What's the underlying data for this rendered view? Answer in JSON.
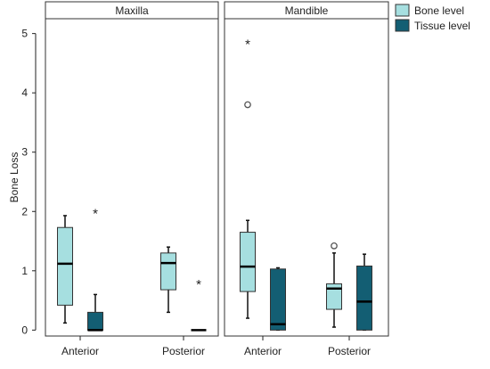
{
  "chart_data": {
    "type": "boxplot",
    "ylabel": "Bone Loss",
    "ylim": [
      -0.1,
      5.25
    ],
    "yticks": [
      0,
      1,
      2,
      3,
      4,
      5
    ],
    "categories": [
      "Anterior",
      "Posterior"
    ],
    "legend": {
      "position": "top-right",
      "entries": [
        {
          "name": "Bone level",
          "color": "#a6dfe0"
        },
        {
          "name": "Tissue level",
          "color": "#135e73"
        }
      ]
    },
    "panels": [
      {
        "title": "Maxilla",
        "groups": [
          {
            "category": "Anterior",
            "boxes": [
              {
                "series": "Bone level",
                "min": 0.12,
                "q1": 0.42,
                "median": 1.12,
                "q3": 1.73,
                "max": 1.93,
                "outliers": [],
                "extremes": []
              },
              {
                "series": "Tissue level",
                "min": 0.0,
                "q1": 0.0,
                "median": 0.0,
                "q3": 0.3,
                "max": 0.6,
                "outliers": [],
                "extremes": [
                  2.0
                ]
              }
            ]
          },
          {
            "category": "Posterior",
            "boxes": [
              {
                "series": "Bone level",
                "min": 0.3,
                "q1": 0.68,
                "median": 1.13,
                "q3": 1.3,
                "max": 1.4,
                "outliers": [],
                "extremes": []
              },
              {
                "series": "Tissue level",
                "min": 0.0,
                "q1": 0.0,
                "median": 0.0,
                "q3": 0.0,
                "max": 0.0,
                "outliers": [],
                "extremes": [
                  0.8
                ]
              }
            ]
          }
        ]
      },
      {
        "title": "Mandible",
        "groups": [
          {
            "category": "Anterior",
            "boxes": [
              {
                "series": "Bone level",
                "min": 0.2,
                "q1": 0.65,
                "median": 1.07,
                "q3": 1.65,
                "max": 1.85,
                "outliers": [
                  3.8
                ],
                "extremes": [
                  4.85
                ]
              },
              {
                "series": "Tissue level",
                "min": 0.0,
                "q1": 0.0,
                "median": 0.1,
                "q3": 1.03,
                "max": 1.05,
                "outliers": [],
                "extremes": []
              }
            ]
          },
          {
            "category": "Posterior",
            "boxes": [
              {
                "series": "Bone level",
                "min": 0.05,
                "q1": 0.35,
                "median": 0.7,
                "q3": 0.78,
                "max": 1.3,
                "outliers": [
                  1.42
                ],
                "extremes": []
              },
              {
                "series": "Tissue level",
                "min": 0.0,
                "q1": 0.0,
                "median": 0.48,
                "q3": 1.08,
                "max": 1.28,
                "outliers": [],
                "extremes": []
              }
            ]
          }
        ]
      }
    ]
  }
}
